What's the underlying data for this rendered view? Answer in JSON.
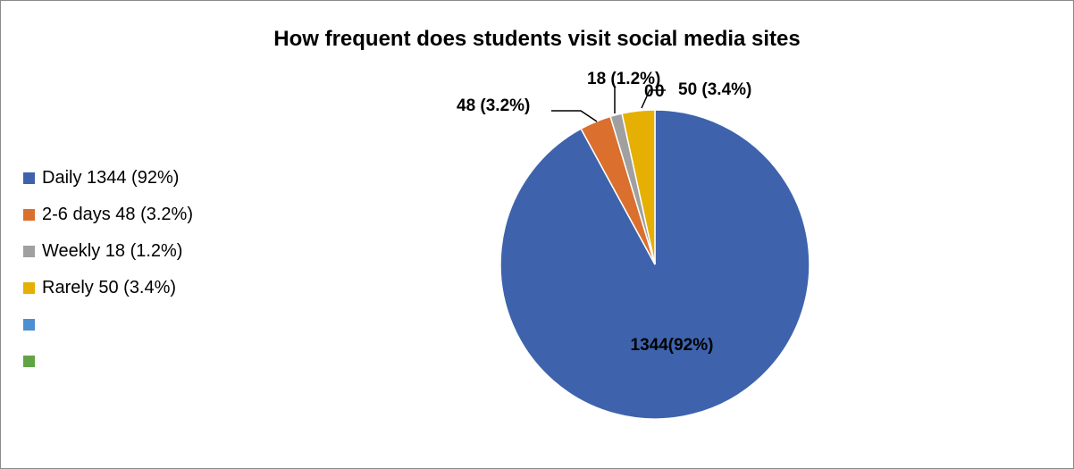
{
  "chart_data": {
    "type": "pie",
    "title": "How frequent does students visit social media sites",
    "slices": [
      {
        "legend": "Daily 1344 (92%)",
        "value": 1344,
        "data_label": "1344(92%)",
        "color": "#3E63AC"
      },
      {
        "legend": "2-6 days 48 (3.2%)",
        "value": 48,
        "data_label": "48 (3.2%)",
        "color": "#DA6F2E"
      },
      {
        "legend": "Weekly 18 (1.2%)",
        "value": 18,
        "data_label": "18 (1.2%)",
        "color": "#A0A0A0"
      },
      {
        "legend": "Rarely 50 (3.4%)",
        "value": 50,
        "data_label": "50 (3.4%)",
        "color": "#E5B003"
      },
      {
        "legend": "",
        "value": 0,
        "data_label": "0",
        "color": "#4D8FD0"
      },
      {
        "legend": "",
        "value": 0,
        "data_label": "0",
        "color": "#61A446"
      }
    ],
    "legend_position": "left",
    "start_angle": "12 o'clock",
    "direction": "clockwise"
  }
}
